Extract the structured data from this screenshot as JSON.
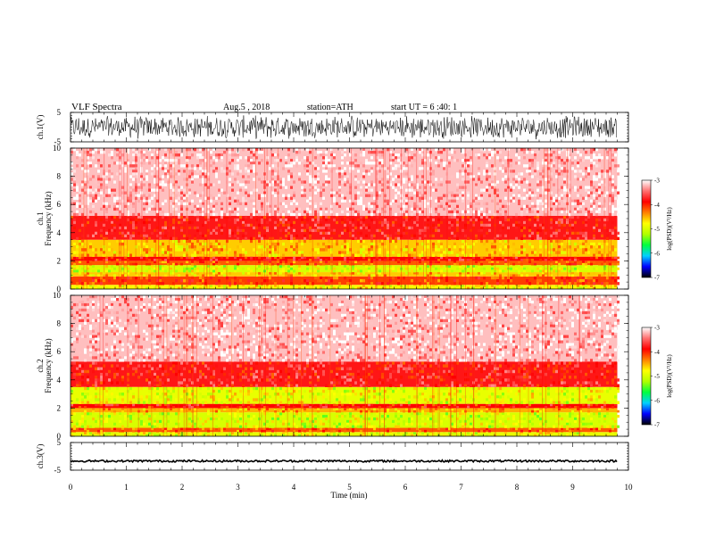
{
  "header": {
    "title": "VLF Spectra",
    "date": "Aug.5 , 2018",
    "station": "station=ATH",
    "start": "start UT = 6 :40: 1"
  },
  "colors": {
    "spec_stops": [
      "#000000",
      "#0000ff",
      "#00d0ff",
      "#00ff40",
      "#b0ff00",
      "#ffff00",
      "#ff8000",
      "#ff0000",
      "#ff7070",
      "#ffffff"
    ]
  },
  "chart_data": [
    {
      "type": "line",
      "name": "ch1-waveform",
      "ylabel": "ch.1(V)",
      "ylim": [
        -5,
        5
      ],
      "yticks": [
        "5",
        "-5"
      ],
      "xlim": [
        0,
        10
      ]
    },
    {
      "type": "heatmap",
      "name": "ch1-spectrogram",
      "ylabel_top": "ch.1",
      "ylabel": "Frequency (kHz)",
      "ylim": [
        0,
        10
      ],
      "yticks": [
        "0",
        "2",
        "4",
        "6",
        "8",
        "10"
      ],
      "xlim": [
        0,
        9.8
      ],
      "colorbar": {
        "label": "log(PSD)(V²/Hz)",
        "range": [
          -7,
          -3
        ],
        "ticks": [
          "-3",
          "-4",
          "-5",
          "-6",
          "-7"
        ]
      },
      "bands": [
        {
          "from": 0.0,
          "to": 0.3,
          "level": -4.8
        },
        {
          "from": 0.3,
          "to": 0.9,
          "level": -4.1
        },
        {
          "from": 0.9,
          "to": 1.2,
          "level": -4.6
        },
        {
          "from": 1.2,
          "to": 1.7,
          "level": -5.0
        },
        {
          "from": 1.7,
          "to": 2.0,
          "level": -4.2
        },
        {
          "from": 2.0,
          "to": 2.3,
          "level": -3.9
        },
        {
          "from": 2.3,
          "to": 3.5,
          "level": -4.6
        },
        {
          "from": 3.5,
          "to": 5.2,
          "level": -3.8
        },
        {
          "from": 5.2,
          "to": 10.0,
          "level": -3.2
        }
      ]
    },
    {
      "type": "heatmap",
      "name": "ch2-spectrogram",
      "ylabel_top": "ch.2",
      "ylabel": "Frequency (kHz)",
      "ylim": [
        0,
        10
      ],
      "yticks": [
        "0",
        "2",
        "4",
        "6",
        "8",
        "10"
      ],
      "xlim": [
        0,
        9.8
      ],
      "colorbar": {
        "label": "log(PSD)(V²/Hz)",
        "range": [
          -7,
          -3
        ],
        "ticks": [
          "-3",
          "-4",
          "-5",
          "-6",
          "-7"
        ]
      },
      "bands": [
        {
          "from": 0.0,
          "to": 0.3,
          "level": -4.9
        },
        {
          "from": 0.3,
          "to": 0.6,
          "level": -4.2
        },
        {
          "from": 0.6,
          "to": 1.7,
          "level": -5.0
        },
        {
          "from": 1.7,
          "to": 2.0,
          "level": -4.5
        },
        {
          "from": 2.0,
          "to": 2.3,
          "level": -3.9
        },
        {
          "from": 2.3,
          "to": 3.5,
          "level": -4.9
        },
        {
          "from": 3.5,
          "to": 5.3,
          "level": -3.8
        },
        {
          "from": 5.3,
          "to": 10.0,
          "level": -3.2
        }
      ]
    },
    {
      "type": "line",
      "name": "ch3-waveform",
      "ylabel": "ch.3(V)",
      "ylim": [
        -5,
        5
      ],
      "yticks": [
        "5",
        "-5"
      ],
      "xlim": [
        0,
        10
      ],
      "level": -1.7
    }
  ],
  "xaxis": {
    "label": "Time (min)",
    "ticks": [
      "0",
      "1",
      "2",
      "3",
      "4",
      "5",
      "6",
      "7",
      "8",
      "9",
      "10"
    ],
    "range": [
      0,
      10
    ]
  }
}
